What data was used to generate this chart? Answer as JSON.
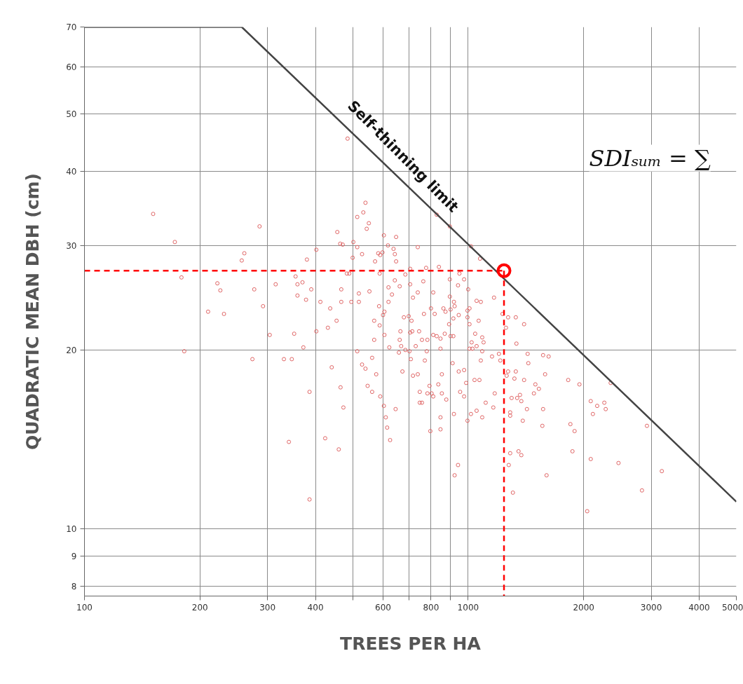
{
  "chart_data": {
    "type": "scatter",
    "xlabel": "TREES PER HA",
    "ylabel": "QUADRATIC MEAN DBH (cm)",
    "log": "xy",
    "xlim": [
      100,
      5000
    ],
    "ylim": [
      7.7,
      70
    ],
    "grid": true,
    "marker": "circle",
    "xticks": [
      100,
      200,
      300,
      400,
      {
        "value": 500,
        "label": null
      },
      600,
      {
        "value": 700,
        "label": null
      },
      800,
      {
        "value": 900,
        "label": null
      },
      1000,
      2000,
      3000,
      4000,
      5000
    ],
    "yticks": [
      8,
      9,
      10,
      20,
      30,
      40,
      50,
      60,
      70
    ],
    "annotations": [
      "SDIₛᵤₘ = ∑"
    ],
    "ref_lines": [
      {
        "axis": "y",
        "value": 27.2,
        "color": "#ff0000",
        "line_style": "dashed"
      },
      {
        "axis": "x",
        "value": 1240,
        "color": "#ff0000",
        "line_style": "dashed"
      }
    ],
    "series": [
      {
        "color": "#e06666",
        "x": [
          151,
          172,
          179,
          182,
          222,
          226,
          210,
          231,
          286,
          261,
          257,
          277,
          292,
          315,
          304,
          274,
          331,
          347,
          352,
          372,
          355,
          359,
          370,
          390,
          359,
          378,
          380,
          402,
          402,
          386,
          341,
          386,
          485,
          540,
          533,
          514,
          551,
          544,
          456,
          464,
          471,
          502,
          514,
          500,
          529,
          603,
          649,
          618,
          639,
          644,
          649,
          583,
          598,
          590,
          572,
          739,
          706,
          483,
          490,
          588,
          686,
          644,
          663,
          620,
          706,
          633,
          739,
          718,
          620,
          467,
          519,
          553,
          467,
          496,
          519,
          412,
          437,
          586,
          605,
          600,
          454,
          569,
          588,
          680,
          700,
          712,
          431,
          605,
          569,
          666,
          663,
          706,
          715,
          745,
          623,
          669,
          660,
          686,
          703,
          730,
          514,
          562,
          709,
          441,
          529,
          540,
          576,
          674,
          718,
          739,
          465,
          547,
          562,
          590,
          748,
          748,
          473,
          603,
          647,
          610,
          615,
          626,
          424,
          460,
          828,
          896,
          1017,
          1074,
          777,
          839,
          949,
          976,
          896,
          764,
          941,
          1000,
          811,
          896,
          918,
          1052,
          1079,
          1168,
          800,
          862,
          900,
          922,
          1008,
          996,
          767,
          818,
          873,
          945,
          915,
          996,
          892,
          1008,
          1065,
          1229,
          1271,
          1331,
          1399,
          1043,
          1088,
          1097,
          1052,
          1021,
          1026,
          811,
          828,
          847,
          869,
          900,
          915,
          783,
          758,
          780,
          847,
          1008,
          1088,
          771,
          911,
          1079,
          1154,
          1203,
          1213,
          1336,
          1255,
          854,
          945,
          976,
          1039,
          1070,
          1271,
          1331,
          1320,
          1399,
          1260,
          793,
          836,
          988,
          783,
          803,
          811,
          854,
          877,
          953,
          976,
          758,
          1173,
          1111,
          1163,
          1298,
          1342,
          1365,
          1376,
          1287,
          1287,
          918,
          1017,
          996,
          1052,
          1088,
          847,
          847,
          797,
          1388,
          941,
          922,
          1287,
          1353,
          1376,
          1276,
          1308,
          1429,
          1568,
          1621,
          1435,
          1587,
          1823,
          1950,
          2352,
          1497,
          1529,
          1484,
          1423,
          1568,
          1561,
          1847,
          1894,
          2087,
          2169,
          2264,
          2283,
          2114,
          2924,
          1870,
          2087,
          2465,
          3197,
          1601,
          2838,
          2043
        ],
        "values": [
          33.9,
          30.4,
          26.5,
          19.9,
          25.9,
          25.2,
          23.2,
          23.0,
          32.3,
          29.1,
          28.3,
          25.3,
          23.7,
          25.8,
          21.2,
          19.3,
          19.3,
          19.3,
          21.3,
          20.2,
          26.6,
          25.8,
          26.0,
          25.3,
          24.7,
          24.3,
          28.4,
          29.5,
          21.5,
          17.0,
          14.0,
          11.2,
          45.4,
          35.4,
          34.1,
          33.5,
          32.7,
          32.0,
          31.6,
          30.2,
          30.1,
          30.4,
          29.8,
          28.6,
          29.0,
          31.2,
          31.0,
          30.0,
          29.6,
          29.0,
          28.2,
          29.1,
          29.2,
          28.9,
          28.2,
          29.8,
          27.4,
          26.9,
          26.9,
          26.9,
          26.8,
          26.2,
          25.6,
          25.5,
          25.8,
          24.8,
          25.0,
          24.5,
          24.1,
          25.3,
          24.9,
          25.1,
          24.1,
          24.1,
          24.1,
          24.1,
          23.5,
          23.7,
          23.2,
          22.9,
          22.4,
          22.4,
          22.0,
          22.7,
          22.8,
          22.4,
          21.8,
          21.2,
          20.8,
          21.5,
          20.8,
          21.4,
          21.5,
          21.5,
          20.2,
          20.3,
          19.8,
          20.0,
          19.9,
          20.3,
          19.9,
          19.4,
          19.3,
          18.7,
          18.9,
          18.6,
          18.2,
          18.4,
          18.1,
          18.2,
          17.3,
          17.4,
          17.0,
          16.7,
          17.0,
          16.3,
          16.0,
          16.1,
          15.9,
          15.4,
          14.8,
          14.1,
          14.2,
          13.6,
          33.8,
          32.3,
          29.9,
          28.5,
          27.5,
          27.6,
          26.9,
          26.3,
          26.3,
          26.1,
          25.7,
          25.3,
          25.0,
          24.6,
          24.1,
          24.2,
          24.1,
          24.5,
          23.5,
          23.5,
          23.4,
          23.7,
          23.5,
          23.3,
          23.0,
          23.0,
          23.2,
          22.9,
          22.6,
          22.7,
          22.1,
          22.1,
          22.4,
          23.0,
          22.7,
          22.7,
          22.1,
          21.3,
          21.0,
          20.6,
          20.3,
          20.6,
          20.1,
          21.2,
          21.1,
          20.9,
          21.3,
          21.1,
          21.1,
          20.8,
          20.8,
          19.9,
          20.1,
          20.1,
          19.9,
          19.2,
          19.0,
          19.2,
          19.5,
          19.7,
          19.2,
          20.5,
          21.8,
          18.2,
          18.4,
          18.5,
          17.8,
          17.8,
          18.4,
          18.4,
          17.9,
          17.8,
          18.1,
          17.4,
          17.5,
          17.6,
          16.9,
          16.9,
          16.7,
          16.9,
          16.5,
          17.0,
          16.7,
          16.3,
          16.9,
          16.3,
          16.0,
          16.6,
          16.6,
          16.8,
          16.4,
          15.7,
          15.5,
          15.6,
          15.6,
          15.2,
          15.8,
          15.4,
          15.4,
          14.7,
          14.6,
          15.2,
          12.8,
          12.3,
          13.4,
          13.5,
          13.3,
          12.8,
          11.5,
          19.7,
          19.6,
          19.5,
          19.0,
          18.2,
          17.8,
          17.5,
          17.6,
          17.5,
          17.2,
          16.9,
          15.9,
          15.9,
          14.9,
          15.0,
          14.6,
          16.4,
          16.1,
          16.3,
          15.9,
          15.6,
          14.9,
          13.5,
          13.1,
          12.9,
          12.5,
          12.3,
          11.6,
          10.7
        ]
      },
      {
        "type": "line",
        "name": "Self-thinning limit",
        "color": "#444444",
        "marker": "none",
        "x": [
          100,
          257,
          5000
        ],
        "values": [
          70,
          70,
          11.1
        ]
      },
      {
        "type": "bubble",
        "color": "#ff0000",
        "x": [
          1240
        ],
        "values": [
          27.2
        ],
        "sizes": [
          1
        ]
      }
    ]
  }
}
